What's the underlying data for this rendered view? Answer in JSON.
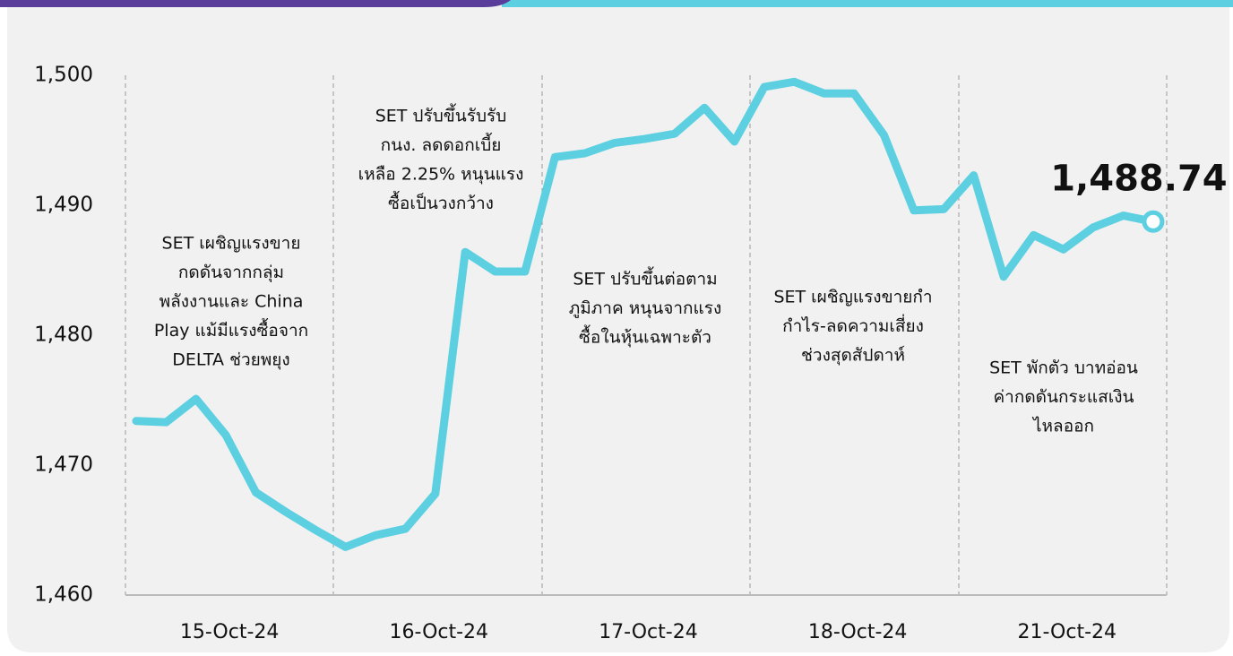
{
  "chart_data": {
    "type": "line",
    "categories": [
      null,
      null,
      null,
      "15-Oct-24",
      null,
      null,
      null,
      null,
      null,
      null,
      "16-Oct-24",
      null,
      null,
      null,
      null,
      null,
      null,
      "17-Oct-24",
      null,
      null,
      null,
      null,
      null,
      null,
      "18-Oct-24",
      null,
      null,
      null,
      null,
      null,
      null,
      "21-Oct-24",
      null,
      null,
      null
    ],
    "series": [
      {
        "name": "SET",
        "color": "#5ccfe0",
        "values": [
          1473.4,
          1473.3,
          1475.1,
          1472.3,
          1467.9,
          1466.4,
          1465.0,
          1463.7,
          1464.6,
          1465.1,
          1467.8,
          1486.4,
          1484.9,
          1484.9,
          1493.7,
          1494.0,
          1494.8,
          1495.1,
          1495.5,
          1497.5,
          1494.9,
          1499.1,
          1499.5,
          1498.6,
          1498.6,
          1495.4,
          1489.6,
          1489.7,
          1492.3,
          1484.5,
          1487.7,
          1486.6,
          1488.3,
          1489.2,
          1488.74
        ],
        "value_labels": [
          null,
          null,
          null,
          null,
          null,
          null,
          null,
          null,
          null,
          null,
          null,
          null,
          null,
          null,
          null,
          null,
          null,
          null,
          null,
          null,
          null,
          null,
          null,
          null,
          null,
          null,
          null,
          null,
          null,
          null,
          null,
          null,
          null,
          null,
          "1,488.74"
        ]
      }
    ],
    "ylim": [
      1460,
      1500
    ],
    "yticks": [
      {
        "value": 1460,
        "label": "1,460"
      },
      {
        "value": 1470,
        "label": "1,470"
      },
      {
        "value": 1480,
        "label": "1,480"
      },
      {
        "value": 1490,
        "label": "1,490"
      },
      {
        "value": 1500,
        "label": "1,500"
      }
    ],
    "annotations": [
      [
        "SET เผชิญแรงขาย",
        "กดดันจากกลุ่ม",
        "พลังงานและ China",
        "Play แม้มีแรงซื้อจาก",
        "DELTA ช่วยพยุง"
      ],
      [
        "SET ปรับขึ้นรับรับ",
        "กนง. ลดดอกเบี้ย",
        "เหลือ 2.25% หนุนแรง",
        "ซื้อเป็นวงกว้าง"
      ],
      [
        "SET ปรับขึ้นต่อตาม",
        "ภูมิภาค หนุนจากแรง",
        "ซื้อในหุ้นเฉพาะตัว"
      ],
      [
        "SET เผชิญแรงขายกำ",
        "กำไร-ลดความเสี่ยง",
        "ช่วงสุดสัปดาห์"
      ],
      [
        "SET พักตัว บาทอ่อน",
        "ค่ากดดันกระแสเงิน",
        "ไหลออก"
      ]
    ]
  }
}
